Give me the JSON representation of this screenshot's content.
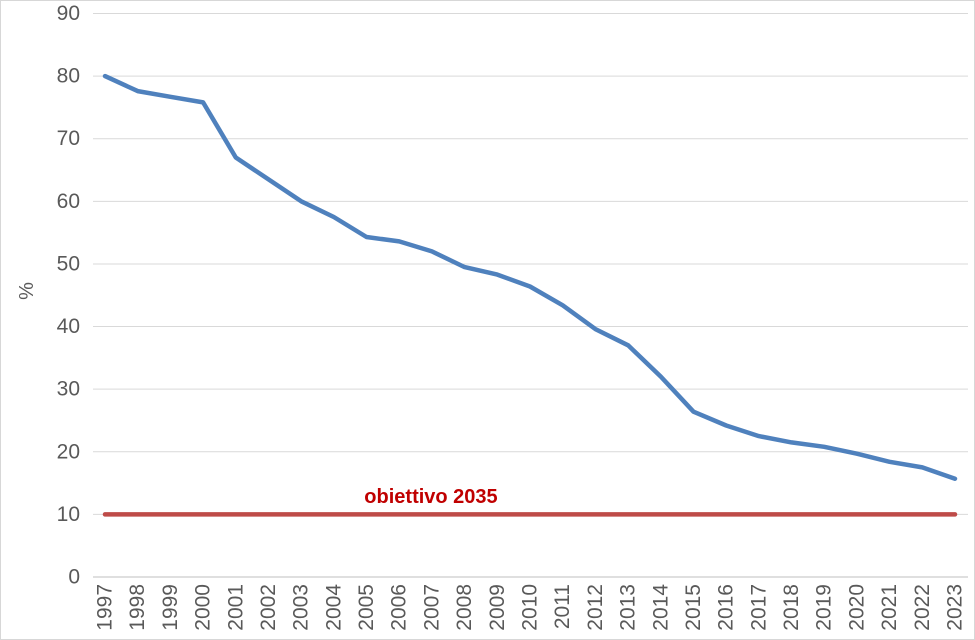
{
  "chart_data": {
    "type": "line",
    "title": "",
    "ylabel": "%",
    "xlabel": "",
    "categories": [
      "1997",
      "1998",
      "1999",
      "2000",
      "2001",
      "2002",
      "2003",
      "2004",
      "2005",
      "2006",
      "2007",
      "2008",
      "2009",
      "2010",
      "2011",
      "2012",
      "2013",
      "2014",
      "2015",
      "2016",
      "2017",
      "2018",
      "2019",
      "2020",
      "2021",
      "2022",
      "2023"
    ],
    "series": {
      "color": "#4F81BD",
      "stroke_width": 4.5,
      "values": [
        80,
        77.6,
        76.7,
        75.8,
        67,
        63.5,
        60,
        57.5,
        54.3,
        53.6,
        52,
        49.5,
        48.3,
        46.4,
        43.4,
        39.6,
        37,
        32,
        26.4,
        24.2,
        22.5,
        21.5,
        20.8,
        19.7,
        18.4,
        17.5,
        15.7
      ]
    },
    "target_line": {
      "label": "obiettivo 2035",
      "value": 10,
      "color": "#BE4B48",
      "label_color": "#C00000",
      "stroke_width": 4.5
    },
    "ylim": [
      0,
      90
    ],
    "yticks": [
      90,
      80,
      70,
      60,
      50,
      40,
      30,
      20,
      10,
      0
    ],
    "grid": true,
    "legend": "none",
    "colors": {
      "gridline": "#D9D9D9",
      "axis_line": "#BFBFBF",
      "tick_label": "#595959",
      "background": "#FFFFFF",
      "border": "#D7D7D7"
    }
  }
}
